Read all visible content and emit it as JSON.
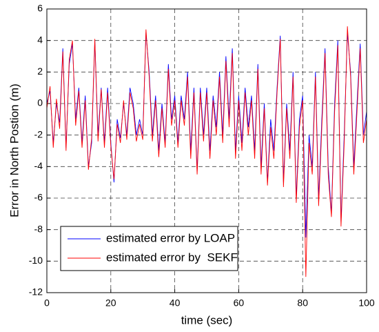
{
  "chart_data": {
    "type": "line",
    "xlabel": "time (sec)",
    "ylabel": "Error in North Postion (m)",
    "x": [
      0,
      1,
      2,
      3,
      4,
      5,
      6,
      7,
      8,
      9,
      10,
      11,
      12,
      13,
      14,
      15,
      16,
      17,
      18,
      19,
      20,
      21,
      22,
      23,
      24,
      25,
      26,
      27,
      28,
      29,
      30,
      31,
      32,
      33,
      34,
      35,
      36,
      37,
      38,
      39,
      40,
      41,
      42,
      43,
      44,
      45,
      46,
      47,
      48,
      49,
      50,
      51,
      52,
      53,
      54,
      55,
      56,
      57,
      58,
      59,
      60,
      61,
      62,
      63,
      64,
      65,
      66,
      67,
      68,
      69,
      70,
      71,
      72,
      73,
      74,
      75,
      76,
      77,
      78,
      79,
      80,
      81,
      82,
      83,
      84,
      85,
      86,
      87,
      88,
      89,
      90,
      91,
      92,
      93,
      94,
      95,
      96,
      97,
      98,
      99,
      100
    ],
    "series": [
      {
        "name": "estimated error by LOAP",
        "color": "#0000ff",
        "values": [
          0,
          0.8,
          -2.5,
          0,
          -1.2,
          3.5,
          -2.8,
          2.5,
          3.8,
          -1,
          1,
          -2.5,
          0.5,
          -4,
          -2.5,
          4,
          -2,
          1,
          -2.5,
          1,
          -2.5,
          -5,
          -1,
          -2.2,
          0,
          -2,
          1,
          0,
          -2,
          -1,
          -2,
          4.5,
          2,
          -2,
          0.5,
          -3,
          0,
          -2.5,
          2.5,
          -1,
          0.5,
          -2.5,
          0.5,
          -1,
          2,
          -3,
          1,
          -4.3,
          1,
          -2,
          1,
          -3,
          0.5,
          -1.5,
          2,
          -2,
          3,
          -1,
          3.5,
          -3,
          0.5,
          -2.5,
          1,
          -1.5,
          0.5,
          -3,
          2.5,
          -4,
          0,
          -5,
          -1,
          -3,
          1,
          4.3,
          -5,
          0,
          -3,
          2,
          -6,
          -1,
          0.5,
          -8.5,
          -2,
          -4,
          2,
          -6,
          -1,
          3.5,
          -4,
          -7,
          0,
          4,
          -7.5,
          -2,
          4.5,
          2,
          -4,
          0,
          3.8,
          -2,
          -0.5
        ]
      },
      {
        "name": "estimated error by  SEKF",
        "color": "#ff0000",
        "values": [
          -0.3,
          1.1,
          -2.8,
          0.3,
          -1.6,
          3.3,
          -3,
          2.8,
          4,
          -1.4,
          0.8,
          -2.8,
          0.2,
          -4.2,
          -2.2,
          4.1,
          -2.4,
          0.9,
          -2.8,
          0.7,
          -2.7,
          -4.8,
          -1.3,
          -2.5,
          0.2,
          -2.3,
          0.7,
          -0.3,
          -2.4,
          -1.3,
          -2.3,
          4.7,
          1.7,
          -2.4,
          0.2,
          -3.4,
          -0.3,
          -2.8,
          2.2,
          -1.4,
          0.2,
          -2.8,
          0.2,
          -1.4,
          1.7,
          -3.5,
          0.7,
          -4.5,
          0.7,
          -2.4,
          0.7,
          -3.5,
          0.2,
          -2,
          1.7,
          -2.5,
          2.7,
          -1.5,
          3.2,
          -3.5,
          0.2,
          -3,
          0.7,
          -2,
          0.2,
          -3.5,
          2.2,
          -4.5,
          -0.3,
          -5.2,
          -1.5,
          -3.5,
          0.7,
          4.1,
          -5.3,
          -0.3,
          -3.5,
          1.7,
          -6.3,
          -1.5,
          0.2,
          -11,
          -2.5,
          -4.5,
          1.7,
          -6.5,
          -1.5,
          3.2,
          -4.5,
          -7.2,
          -0.5,
          3.7,
          -7.8,
          -2.5,
          4.9,
          1.7,
          -4.5,
          -0.5,
          3.5,
          -2.5,
          -1
        ]
      }
    ],
    "xlim": [
      0,
      100
    ],
    "xticks": [
      0,
      20,
      40,
      60,
      80,
      100
    ],
    "ylim": [
      -12,
      6
    ],
    "yticks": [
      -12,
      -10,
      -8,
      -6,
      -4,
      -2,
      0,
      2,
      4,
      6
    ],
    "grid": true,
    "legend": "lower left"
  }
}
